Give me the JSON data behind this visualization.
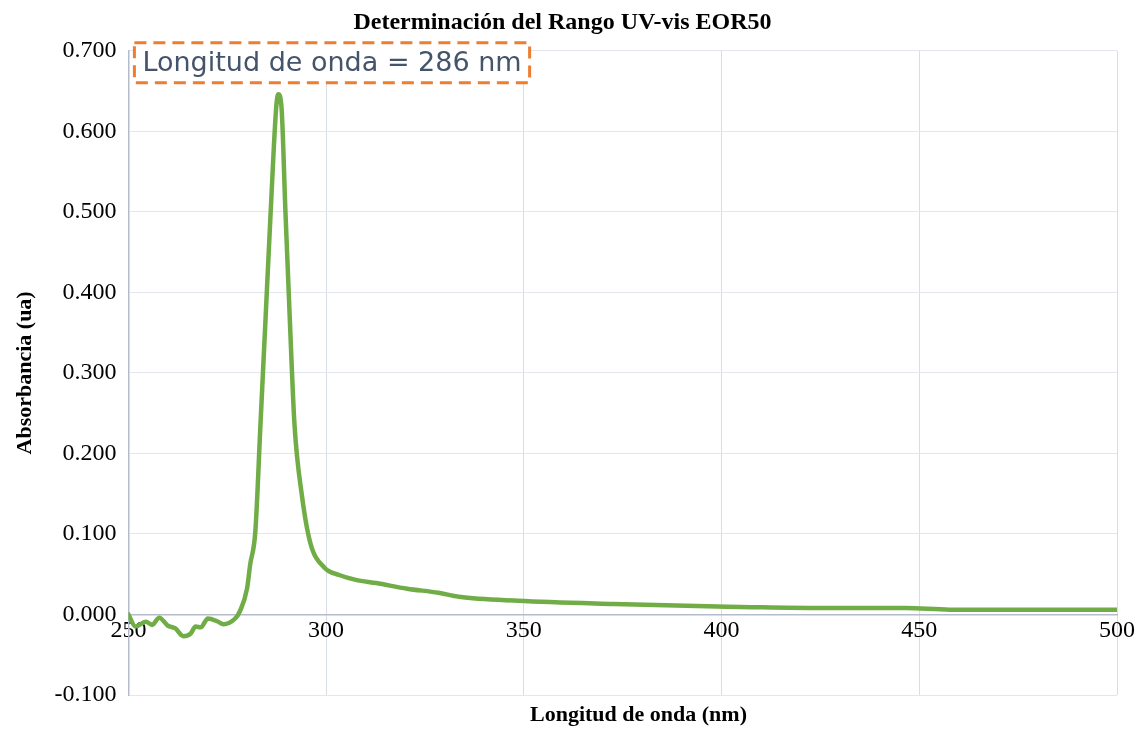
{
  "chart_data": {
    "type": "line",
    "title": "Determinación del Rango UV-vis EOR50",
    "xlabel": "Longitud de onda (nm)",
    "ylabel": "Absorbancia (ua)",
    "annotations": [
      "Longitud de onda = 286 nm"
    ],
    "x": [
      250,
      251.8,
      254.4,
      256,
      257.8,
      260,
      261.8,
      263.9,
      265.7,
      267,
      268.3,
      270.1,
      272.7,
      274,
      277,
      278.2,
      280,
      280.8,
      282.1,
      283.4,
      284.7,
      286,
      287.4,
      287.9,
      288.7,
      289.7,
      290.8,
      292,
      293.9,
      296,
      299.6,
      303.3,
      307.5,
      312.7,
      320.5,
      328.4,
      333.6,
      348.5,
      372.8,
      398.9,
      425,
      446.5,
      457.7,
      480,
      500
    ],
    "series": [
      {
        "color": "#70ad47",
        "values": [
          0.0,
          -0.015,
          -0.009,
          -0.013,
          -0.004,
          -0.014,
          -0.017,
          -0.027,
          -0.024,
          -0.015,
          -0.016,
          -0.005,
          -0.009,
          -0.012,
          -0.005,
          0.004,
          0.032,
          0.062,
          0.103,
          0.236,
          0.369,
          0.502,
          0.631,
          0.646,
          0.631,
          0.502,
          0.369,
          0.236,
          0.147,
          0.089,
          0.058,
          0.049,
          0.043,
          0.039,
          0.032,
          0.027,
          0.022,
          0.017,
          0.013,
          0.01,
          0.008,
          0.008,
          0.006,
          0.006,
          0.006
        ]
      }
    ],
    "xlim": [
      250,
      500
    ],
    "xticks": [
      250,
      300,
      350,
      400,
      450,
      500
    ],
    "ylim": [
      -0.1,
      0.7
    ],
    "yticks": [
      {
        "value": -0.1,
        "label": "-0.100"
      },
      {
        "value": 0,
        "label": "0.000"
      },
      {
        "value": 0.1,
        "label": "0.100"
      },
      {
        "value": 0.2,
        "label": "0.200"
      },
      {
        "value": 0.3,
        "label": "0.300"
      },
      {
        "value": 0.4,
        "label": "0.400"
      },
      {
        "value": 0.5,
        "label": "0.500"
      },
      {
        "value": 0.6,
        "label": "0.600"
      },
      {
        "value": 0.7,
        "label": "0.700"
      }
    ],
    "grid": true,
    "legend": false,
    "marker": "none",
    "line_style": "solid"
  }
}
